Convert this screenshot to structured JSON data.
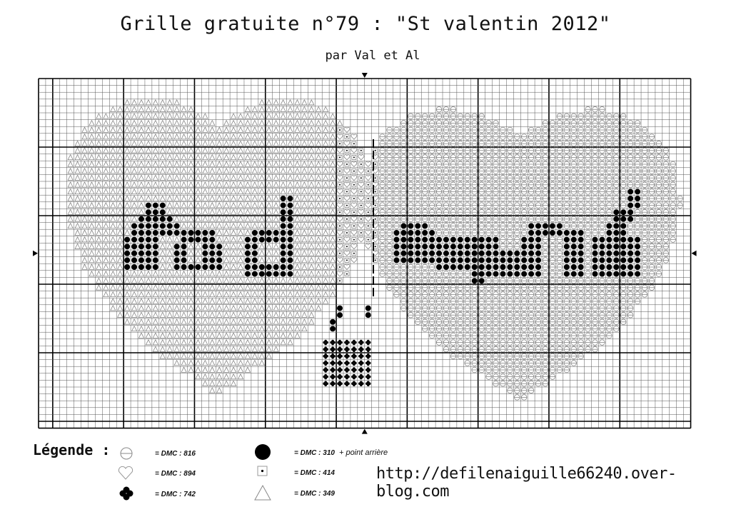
{
  "header": {
    "title": "Grille gratuite n°79 : \"St valentin 2012\"",
    "subtitle": "par Val et Al"
  },
  "pattern": {
    "grid_columns": 92,
    "grid_rows": 51,
    "major_line_every": 10,
    "center_arrows": [
      "top",
      "bottom",
      "left",
      "right"
    ]
  },
  "legend": {
    "title": "Légende :",
    "items": [
      {
        "symbol": "circle-line-icon",
        "label": "= DMC : 816",
        "extra": ""
      },
      {
        "symbol": "heart-outline-icon",
        "label": "= DMC : 894",
        "extra": ""
      },
      {
        "symbol": "club-icon",
        "label": "= DMC : 742",
        "extra": ""
      },
      {
        "symbol": "filled-circle-icon",
        "label": "= DMC : 310",
        "extra": "+ point arrière"
      },
      {
        "symbol": "dotted-square-icon",
        "label": "= DMC : 414",
        "extra": ""
      },
      {
        "symbol": "triangle-icon",
        "label": "= DMC : 349",
        "extra": ""
      }
    ]
  },
  "footer": {
    "url": "http://defilenaiguille66240.over-blog.com"
  }
}
